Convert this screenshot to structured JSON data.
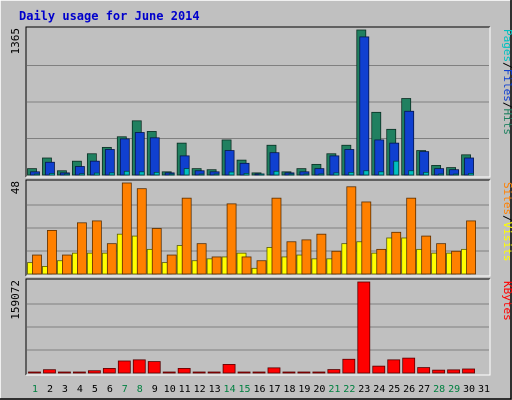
{
  "chart_data": {
    "type": "bar",
    "title": "Daily usage for June 2014",
    "days": [
      "1",
      "2",
      "3",
      "4",
      "5",
      "6",
      "7",
      "8",
      "9",
      "10",
      "11",
      "12",
      "13",
      "14",
      "15",
      "16",
      "17",
      "18",
      "19",
      "20",
      "21",
      "22",
      "23",
      "24",
      "25",
      "26",
      "27",
      "28",
      "29",
      "30",
      "31"
    ],
    "weekend_days": [
      "1",
      "7",
      "8",
      "14",
      "15",
      "21",
      "22",
      "28",
      "29"
    ],
    "panels": [
      {
        "name": "hits-files-pages",
        "max_label": "1365",
        "ymax": 1365,
        "legend": [
          {
            "label": "Pages",
            "color": "#00c0c0"
          },
          {
            "label": "/",
            "color": "#000000"
          },
          {
            "label": "Files",
            "color": "#1040d0"
          },
          {
            "label": "/",
            "color": "#000000"
          },
          {
            "label": "Hits",
            "color": "#208060"
          }
        ],
        "series": [
          {
            "name": "Hits",
            "color": "#208060",
            "values": [
              60,
              160,
              40,
              130,
              200,
              260,
              360,
              510,
              410,
              30,
              300,
              60,
              50,
              330,
              140,
              20,
              280,
              30,
              60,
              100,
              200,
              280,
              1365,
              590,
              430,
              720,
              230,
              90,
              70,
              190,
              null
            ]
          },
          {
            "name": "Files",
            "color": "#1040d0",
            "values": [
              30,
              120,
              20,
              80,
              130,
              240,
              340,
              400,
              350,
              20,
              180,
              40,
              30,
              230,
              110,
              10,
              210,
              20,
              30,
              60,
              180,
              240,
              1300,
              330,
              300,
              600,
              220,
              60,
              50,
              160,
              null
            ]
          },
          {
            "name": "Pages",
            "color": "#00c0c0",
            "values": [
              8,
              15,
              5,
              12,
              18,
              20,
              35,
              30,
              25,
              5,
              60,
              8,
              6,
              28,
              15,
              4,
              35,
              5,
              8,
              10,
              20,
              25,
              40,
              30,
              130,
              40,
              25,
              10,
              8,
              15,
              null
            ]
          }
        ]
      },
      {
        "name": "visits-sites",
        "max_label": "48",
        "ymax": 48,
        "legend": [
          {
            "label": "Sites",
            "color": "#ff8000"
          },
          {
            "label": "/",
            "color": "#000000"
          },
          {
            "label": "Visits",
            "color": "#ffff00"
          }
        ],
        "series": [
          {
            "name": "Visits",
            "color": "#ffff00",
            "values": [
              6,
              4,
              7,
              11,
              11,
              11,
              21,
              20,
              13,
              6,
              15,
              7,
              8,
              9,
              11,
              3,
              14,
              9,
              10,
              8,
              8,
              16,
              17,
              11,
              19,
              19,
              13,
              11,
              11,
              13,
              null
            ]
          },
          {
            "name": "Sites",
            "color": "#ff8000",
            "values": [
              10,
              23,
              10,
              27,
              28,
              16,
              48,
              45,
              24,
              10,
              40,
              16,
              9,
              37,
              9,
              7,
              40,
              17,
              18,
              21,
              12,
              46,
              38,
              13,
              22,
              40,
              20,
              16,
              12,
              28,
              null
            ]
          }
        ]
      },
      {
        "name": "kbytes",
        "max_label": "159072",
        "ymax": 159072,
        "legend": [
          {
            "label": "KBytes",
            "color": "#ff0000"
          }
        ],
        "series": [
          {
            "name": "KBytes",
            "color": "#ff0000",
            "values": [
              1500,
              5800,
              1200,
              1600,
              4000,
              8000,
              21000,
              23000,
              20000,
              1200,
              8000,
              1100,
              1100,
              15000,
              1200,
              500,
              9000,
              800,
              800,
              900,
              6000,
              24000,
              159072,
              12000,
              23000,
              26000,
              9500,
              5000,
              5500,
              7000,
              null
            ]
          }
        ]
      }
    ]
  }
}
